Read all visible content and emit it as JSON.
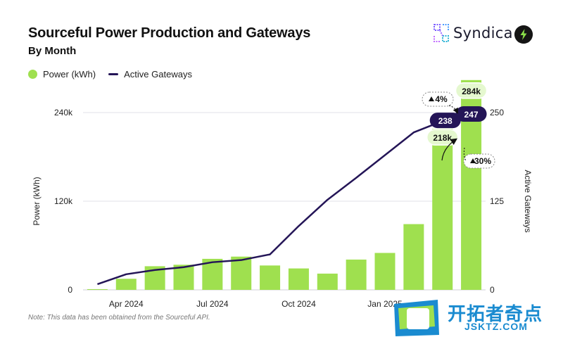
{
  "header": {
    "title": "Sourceful Power Production and Gateways",
    "subtitle": "By Month"
  },
  "brand": {
    "name": "Syndica",
    "icon": "syndica-logo-icon",
    "badge_icon": "lightning-bolt-icon"
  },
  "note": "Note: This data has been obtained from the Sourceful API.",
  "watermark": {
    "text": "开拓者奇点",
    "sub": "JSKTZ.COM",
    "icon": "letter-b-icon"
  },
  "colors": {
    "bar": "#9fe04f",
    "line": "#241557",
    "grid": "#e2e2e8"
  },
  "chart_data": {
    "type": "bar",
    "categories": [
      "2024-03",
      "2024-04",
      "2024-05",
      "2024-06",
      "2024-07",
      "2024-08",
      "2024-09",
      "2024-10",
      "2024-11",
      "2024-12",
      "2025-01",
      "2025-02",
      "2025-03",
      "2025-04"
    ],
    "x_tick_labels": [
      "Apr 2024",
      "Jul 2024",
      "Oct 2024",
      "Jan 2025"
    ],
    "series": [
      {
        "name": "Power (kWh)",
        "type": "bar",
        "axis": "left",
        "values": [
          1000,
          15000,
          32000,
          34000,
          42000,
          45000,
          33000,
          29000,
          22000,
          41000,
          50000,
          89000,
          218000,
          284000
        ]
      },
      {
        "name": "Active Gateways",
        "type": "line",
        "axis": "right",
        "values": [
          8,
          22,
          28,
          32,
          39,
          42,
          50,
          90,
          127,
          158,
          190,
          222,
          238,
          247
        ]
      }
    ],
    "ylabel": "Power (kWh)",
    "y2label": "Active Gateways",
    "ylim": [
      0,
      240000
    ],
    "y2lim": [
      0,
      250
    ],
    "y_ticks": [
      "0",
      "120k",
      "240k"
    ],
    "y2_ticks": [
      "0",
      "125",
      "250"
    ],
    "annotations": {
      "bar_labels": [
        {
          "index": 12,
          "text": "218k"
        },
        {
          "index": 13,
          "text": "284k"
        }
      ],
      "line_labels": [
        {
          "index": 12,
          "text": "238"
        },
        {
          "index": 13,
          "text": "247"
        }
      ],
      "bar_change": "30%",
      "line_change": "4%"
    },
    "legend_position": "top-left",
    "grid": true
  }
}
